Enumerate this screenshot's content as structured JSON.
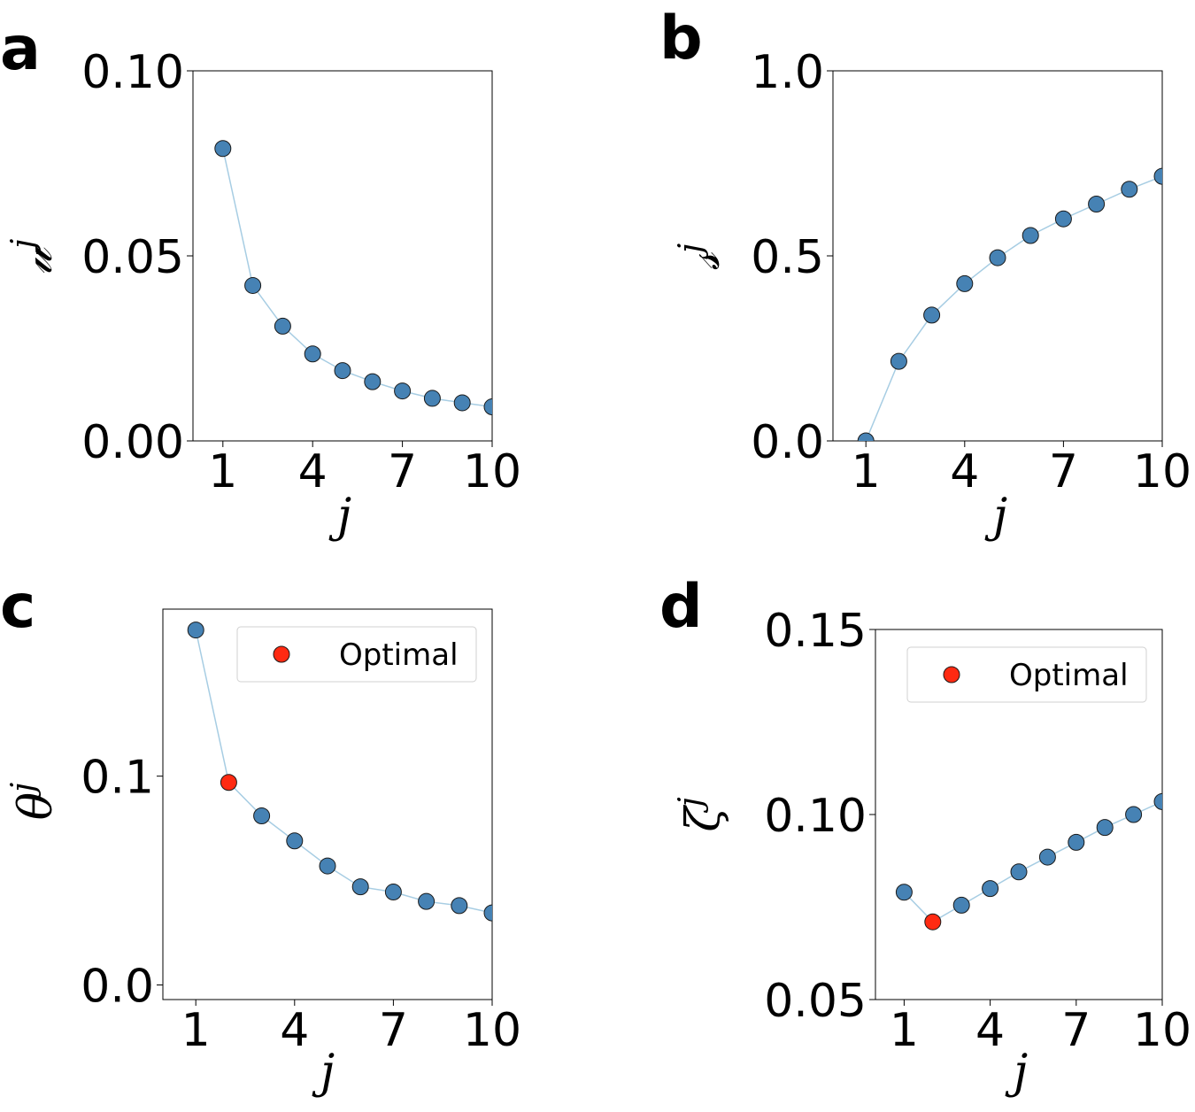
{
  "colors": {
    "point": "#4682b4",
    "optimal": "#ff2a12",
    "line": "#a7cde3",
    "edge": "#1a1a1a"
  },
  "chart_data": [
    {
      "panel": "a",
      "type": "line",
      "xlabel": "j",
      "ylabel": "𝓊",
      "ylabel_sup": "j",
      "x": [
        1,
        2,
        3,
        4,
        5,
        6,
        7,
        8,
        9,
        10
      ],
      "y": [
        0.079,
        0.042,
        0.031,
        0.0235,
        0.019,
        0.016,
        0.0135,
        0.0115,
        0.0103,
        0.0092
      ],
      "xlim": [
        0,
        10
      ],
      "ylim": [
        0,
        0.1
      ],
      "xticks": [
        1,
        4,
        7,
        10
      ],
      "xtick_labels": [
        "1",
        "4",
        "7",
        "10"
      ],
      "yticks": [
        0,
        0.05,
        0.1
      ],
      "ytick_labels": [
        "0.00",
        "0.05",
        "0.10"
      ],
      "optimal_index": null,
      "legend": null
    },
    {
      "panel": "b",
      "type": "line",
      "xlabel": "j",
      "ylabel": "𝓈",
      "ylabel_sup": "j",
      "x": [
        1,
        2,
        3,
        4,
        5,
        6,
        7,
        8,
        9,
        10
      ],
      "y": [
        0.0,
        0.215,
        0.34,
        0.425,
        0.495,
        0.555,
        0.6,
        0.64,
        0.68,
        0.715
      ],
      "xlim": [
        0,
        10
      ],
      "ylim": [
        0,
        1.0
      ],
      "xticks": [
        1,
        4,
        7,
        10
      ],
      "xtick_labels": [
        "1",
        "4",
        "7",
        "10"
      ],
      "yticks": [
        0,
        0.5,
        1.0
      ],
      "ytick_labels": [
        "0.0",
        "0.5",
        "1.0"
      ],
      "optimal_index": null,
      "legend": null
    },
    {
      "panel": "c",
      "type": "line",
      "xlabel": "j",
      "ylabel": "θ",
      "ylabel_sup": "j",
      "x": [
        1,
        2,
        3,
        4,
        5,
        6,
        7,
        8,
        9,
        10
      ],
      "y": [
        0.17,
        0.097,
        0.081,
        0.069,
        0.057,
        0.047,
        0.0445,
        0.04,
        0.038,
        0.0345
      ],
      "xlim": [
        0,
        10
      ],
      "ylim": [
        -0.007,
        0.18
      ],
      "xticks": [
        1,
        4,
        7,
        10
      ],
      "xtick_labels": [
        "1",
        "4",
        "7",
        "10"
      ],
      "yticks": [
        0,
        0.1
      ],
      "ytick_labels": [
        "0.0",
        "0.1"
      ],
      "optimal_index": 1,
      "legend": {
        "label": "Optimal",
        "position": "upper right"
      }
    },
    {
      "panel": "d",
      "type": "line",
      "xlabel": "j",
      "ylabel": "ζ",
      "ylabel_sup": "j",
      "x": [
        1,
        2,
        3,
        4,
        5,
        6,
        7,
        8,
        9,
        10
      ],
      "y": [
        0.079,
        0.071,
        0.0755,
        0.08,
        0.0845,
        0.0885,
        0.0925,
        0.0965,
        0.1,
        0.1035
      ],
      "xlim": [
        0,
        10
      ],
      "ylim": [
        0.05,
        0.15
      ],
      "xticks": [
        1,
        4,
        7,
        10
      ],
      "xtick_labels": [
        "1",
        "4",
        "7",
        "10"
      ],
      "yticks": [
        0.05,
        0.1,
        0.15
      ],
      "ytick_labels": [
        "0.05",
        "0.10",
        "0.15"
      ],
      "optimal_index": 1,
      "legend": {
        "label": "Optimal",
        "position": "upper right"
      }
    }
  ]
}
